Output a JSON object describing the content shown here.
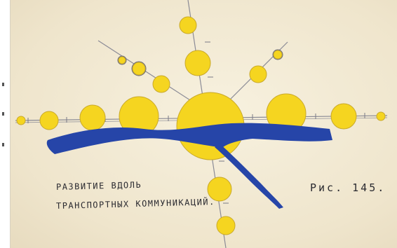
{
  "caption": {
    "line1": "РАЗВИТИЕ ВДОЛЬ",
    "line2": "ТРАНСПОРТНЫХ КОММУНИКАЦИЙ."
  },
  "figure_label": "Рис. 145.",
  "colors": {
    "paper": "#f3ecd9",
    "circle_fill": "#f5d520",
    "circle_stroke": "#c9a92a",
    "river": "#2645a8",
    "axis_line": "#8b8b96"
  }
}
